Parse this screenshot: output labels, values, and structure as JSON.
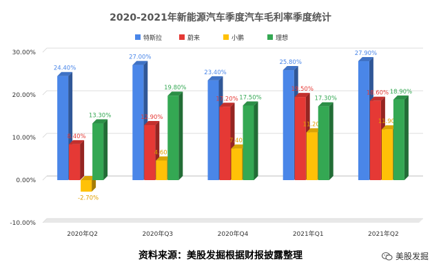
{
  "chart_data": {
    "type": "bar",
    "title": "2020-2021年新能源汽车季度汽车毛利率季度统计",
    "categories": [
      "2020年Q2",
      "2020年Q3",
      "2020年Q4",
      "2021年Q1",
      "2021年Q2"
    ],
    "series": [
      {
        "name": "特斯拉",
        "color": "#4a86e8",
        "values": [
          24.4,
          27.0,
          23.4,
          25.8,
          27.9
        ],
        "labels": [
          "24.40%",
          "27.00%",
          "23.40%",
          "25.80%",
          "27.90%"
        ]
      },
      {
        "name": "蔚来",
        "color": "#e53935",
        "values": [
          8.4,
          12.9,
          17.2,
          19.5,
          18.6
        ],
        "labels": [
          "8.40%",
          "12.90%",
          "17.20%",
          "19.50%",
          "18.60%"
        ]
      },
      {
        "name": "小鹏",
        "color": "#ffc107",
        "values": [
          -2.7,
          4.6,
          7.4,
          11.2,
          11.9
        ],
        "labels": [
          "-2.70%",
          "4.60%",
          "7.40%",
          "11.20%",
          "11.90%"
        ]
      },
      {
        "name": "理想",
        "color": "#34a853",
        "values": [
          13.3,
          19.8,
          17.5,
          17.3,
          18.9
        ],
        "labels": [
          "13.30%",
          "19.80%",
          "17.50%",
          "17.30%",
          "18.90%"
        ]
      }
    ],
    "ylim": [
      -10,
      30
    ],
    "yticks": [
      "-10.00%",
      "0.00%",
      "10.00%",
      "20.00%",
      "30.00%"
    ],
    "ytick_values": [
      -10,
      0,
      10,
      20,
      30
    ],
    "xlabel": "",
    "ylabel": "",
    "legend_position": "top",
    "grid": true,
    "style": "3d-bar"
  },
  "footer": {
    "source": "资料来源：美股发掘根据财报披露整理",
    "brand": "美股发掘",
    "brand_icon": "wechat-icon"
  }
}
